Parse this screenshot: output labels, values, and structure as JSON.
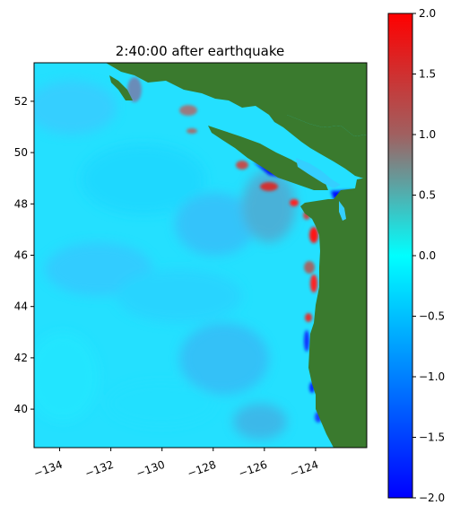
{
  "title": "2:40:00 after earthquake",
  "map": {
    "x_range": [
      -135,
      -122
    ],
    "y_range": [
      38.5,
      53.5
    ],
    "x_ticks": [
      -134,
      -132,
      -130,
      -128,
      -126,
      -124
    ],
    "x_tick_labels": [
      "−134",
      "−132",
      "−130",
      "−128",
      "−126",
      "−124"
    ],
    "y_ticks": [
      40,
      42,
      44,
      46,
      48,
      50,
      52
    ],
    "y_tick_labels": [
      "40",
      "42",
      "44",
      "46",
      "48",
      "50",
      "52"
    ],
    "land_color": "#3a7a2e",
    "ocean_color": "#24e0ff"
  },
  "colorbar": {
    "range": [
      -2.0,
      2.0
    ],
    "ticks": [
      -2.0,
      -1.5,
      -1.0,
      -0.5,
      0.0,
      0.5,
      1.0,
      1.5,
      2.0
    ],
    "tick_labels": [
      "−2.0",
      "−1.5",
      "−1.0",
      "−0.5",
      "0.0",
      "0.5",
      "1.0",
      "1.5",
      "2.0"
    ],
    "colors": [
      "#0000ff",
      "#0080ff",
      "#00ffff",
      "#a06060",
      "#ff0000"
    ]
  }
}
